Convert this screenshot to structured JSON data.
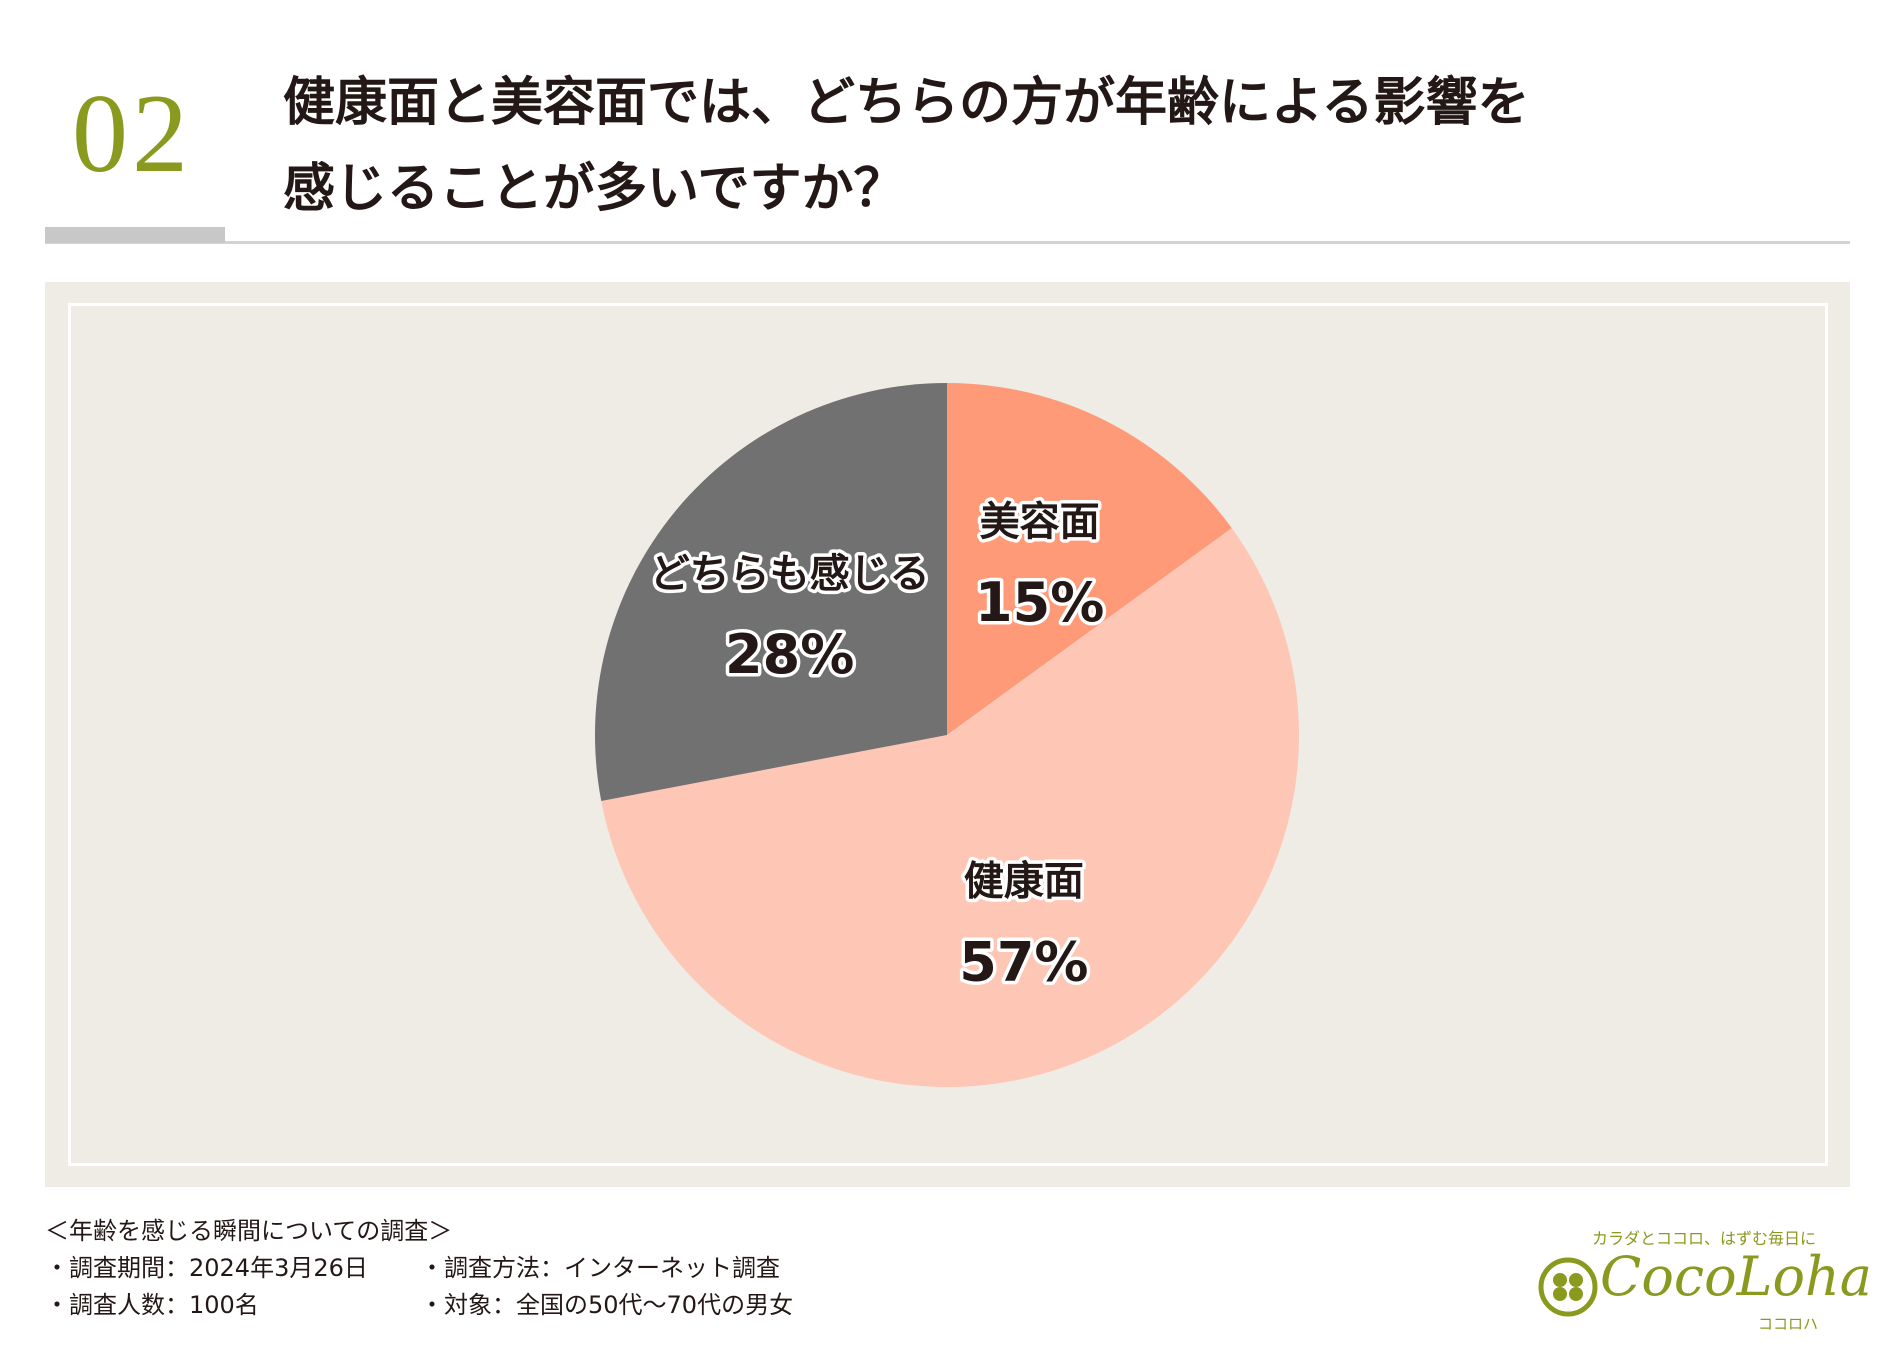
{
  "header": {
    "number": "02",
    "title_lines": [
      "健康面と美容面では、どちらの方が年齢による影響を",
      "感じることが多いですか？"
    ]
  },
  "chart_data": {
    "type": "pie",
    "title": "健康面と美容面では、どちらの方が年齢による影響を感じることが多いですか？",
    "slices": [
      {
        "label": "美容面",
        "value": 15,
        "value_label": "15%",
        "color": "#ff9a78"
      },
      {
        "label": "健康面",
        "value": 57,
        "value_label": "57%",
        "color": "#fec6b5"
      },
      {
        "label": "どちらも感じる",
        "value": 28,
        "value_label": "28%",
        "color": "#727171"
      }
    ],
    "legend": "none",
    "start": "12 o'clock",
    "direction": "clockwise"
  },
  "footer": {
    "survey_title": "＜年齢を感じる瞬間についての調査＞",
    "period": "・調査期間：2024年3月26日",
    "method": "・調査方法：インターネット調査",
    "respondents": "・調査人数：100名",
    "target": "・対象：全国の50代〜70代の男女"
  },
  "logo": {
    "tagline": "カラダとココロ、はずむ毎日に",
    "brand": "CocoLoha",
    "kana": "ココロハ",
    "color": "#8a9a1e"
  }
}
